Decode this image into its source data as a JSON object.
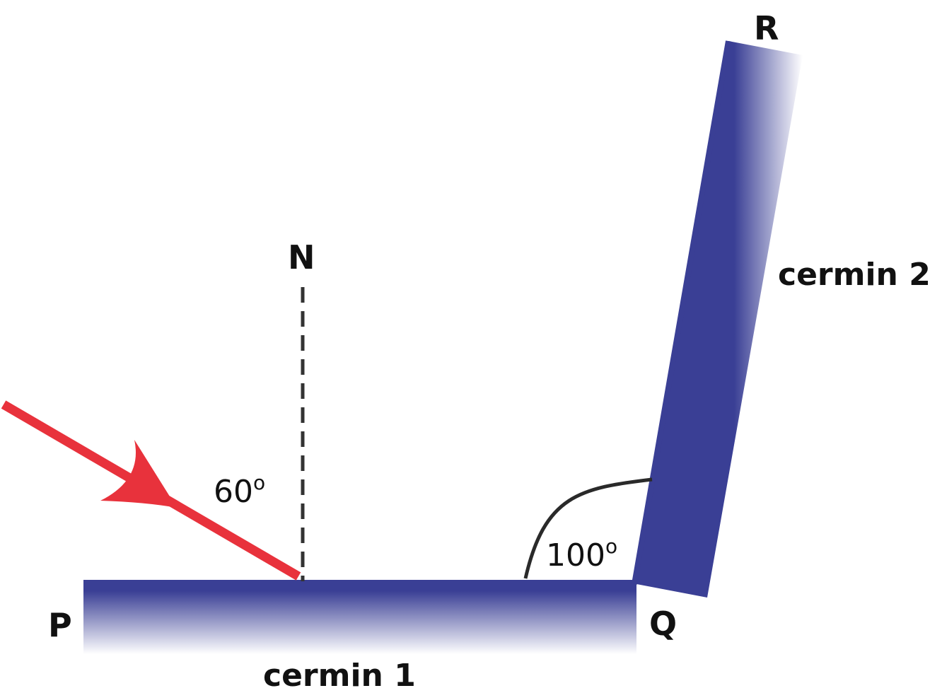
{
  "points": {
    "p": "P",
    "q": "Q",
    "r": "R",
    "n": "N"
  },
  "mirrors": {
    "mirror_1": "cermin 1",
    "mirror_2": "cermin 2"
  },
  "angles": {
    "incidence": {
      "value": "60",
      "unit": "o"
    },
    "mirror_angle": {
      "value": "100",
      "unit": "o"
    }
  },
  "colors": {
    "mirror": "#3a3f95",
    "ray": "#e8323c",
    "normal": "#333333",
    "arc": "#2a2a2a",
    "text": "#111111"
  }
}
